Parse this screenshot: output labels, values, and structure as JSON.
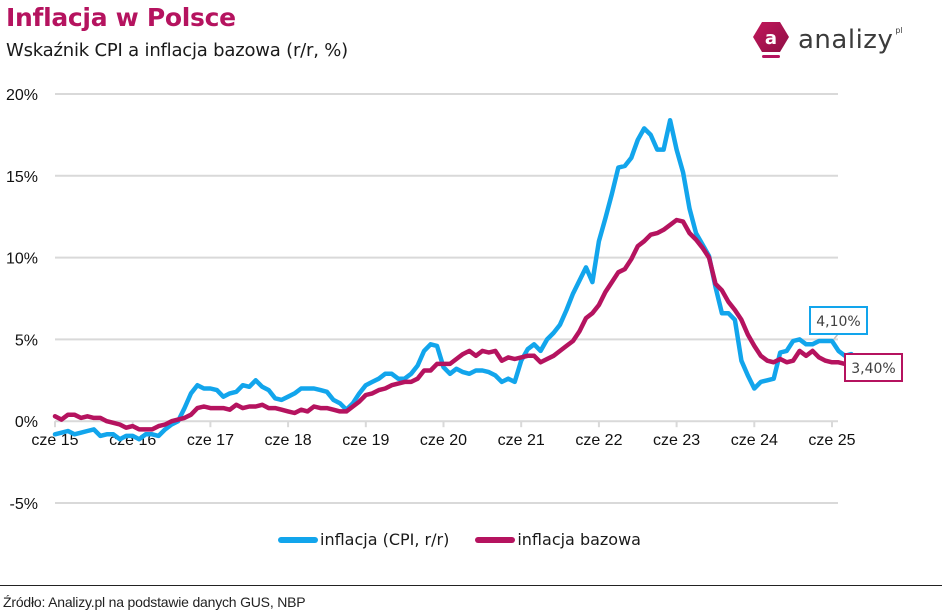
{
  "header": {
    "title": "Inflacja w Polsce",
    "subtitle": "Wskaźnik CPI a inflacja bazowa (r/r, %)"
  },
  "logo": {
    "icon_letter": "a",
    "text": "analizy",
    "suffix": "pl"
  },
  "colors": {
    "title": "#b5135f",
    "cpi": "#12a5ec",
    "core": "#b5135f",
    "grid": "#d9d9d9"
  },
  "footer": {
    "source": "Źródło: Analizy.pl na podstawie danych GUS, NBP"
  },
  "chart_data": {
    "type": "line",
    "title": "Inflacja w Polsce",
    "subtitle": "Wskaźnik CPI a inflacja bazowa (r/r, %)",
    "xlabel": "",
    "ylabel": "",
    "ylim": [
      -5,
      20
    ],
    "yticks": [
      -5,
      0,
      5,
      10,
      15,
      20
    ],
    "ytick_labels": [
      "-5%",
      "0%",
      "5%",
      "10%",
      "15%",
      "20%"
    ],
    "grid": true,
    "x_start": "2015-06",
    "x_frequency": "monthly",
    "xtick_labels": [
      "cze 15",
      "cze 16",
      "cze 17",
      "cze 18",
      "cze 19",
      "cze 20",
      "cze 21",
      "cze 22",
      "cze 23",
      "cze 24",
      "cze 25"
    ],
    "xtick_month_index": [
      0,
      12,
      24,
      36,
      48,
      60,
      72,
      84,
      96,
      108,
      120
    ],
    "legend_position": "bottom",
    "series": [
      {
        "name": "inflacja (CPI, r/r)",
        "color": "#12a5ec",
        "values": [
          -0.8,
          -0.7,
          -0.6,
          -0.8,
          -0.7,
          -0.6,
          -0.5,
          -0.9,
          -0.8,
          -0.8,
          -1.1,
          -0.9,
          -0.9,
          -1.1,
          -0.8,
          -0.8,
          -0.9,
          -0.5,
          -0.2,
          0.0,
          0.8,
          1.7,
          2.2,
          2.0,
          2.0,
          1.9,
          1.5,
          1.7,
          1.8,
          2.2,
          2.1,
          2.5,
          2.1,
          1.9,
          1.4,
          1.3,
          1.5,
          1.7,
          2.0,
          2.0,
          2.0,
          1.9,
          1.8,
          1.3,
          1.1,
          0.7,
          1.1,
          1.7,
          2.2,
          2.4,
          2.6,
          2.9,
          2.9,
          2.6,
          2.6,
          2.9,
          3.4,
          4.3,
          4.7,
          4.6,
          3.3,
          2.9,
          3.2,
          3.0,
          2.9,
          3.1,
          3.1,
          3.0,
          2.8,
          2.4,
          2.6,
          2.4,
          3.7,
          4.4,
          4.7,
          4.3,
          5.0,
          5.4,
          5.9,
          6.8,
          7.8,
          8.6,
          9.4,
          8.5,
          11.0,
          12.4,
          13.9,
          15.5,
          15.6,
          16.1,
          17.2,
          17.9,
          17.5,
          16.6,
          16.6,
          18.4,
          16.6,
          15.2,
          13.0,
          11.5,
          10.8,
          10.1,
          8.2,
          6.6,
          6.6,
          6.2,
          3.7,
          2.8,
          2.0,
          2.4,
          2.5,
          2.6,
          4.2,
          4.3,
          4.9,
          5.0,
          4.7,
          4.7,
          4.9,
          4.9,
          4.9,
          4.3,
          4.0,
          4.1
        ]
      },
      {
        "name": "inflacja bazowa",
        "color": "#b5135f",
        "values": [
          0.3,
          0.1,
          0.4,
          0.4,
          0.2,
          0.3,
          0.2,
          0.2,
          0.0,
          -0.1,
          -0.2,
          -0.4,
          -0.3,
          -0.5,
          -0.5,
          -0.5,
          -0.3,
          -0.2,
          0.0,
          0.1,
          0.2,
          0.4,
          0.8,
          0.9,
          0.8,
          0.8,
          0.8,
          0.7,
          1.0,
          0.8,
          0.9,
          0.9,
          1.0,
          0.8,
          0.8,
          0.7,
          0.6,
          0.5,
          0.7,
          0.6,
          0.9,
          0.8,
          0.8,
          0.7,
          0.6,
          0.6,
          0.9,
          1.2,
          1.6,
          1.7,
          1.9,
          2.0,
          2.2,
          2.3,
          2.4,
          2.4,
          2.6,
          3.1,
          3.1,
          3.5,
          3.5,
          3.5,
          3.8,
          4.1,
          4.3,
          4.0,
          4.3,
          4.2,
          4.3,
          3.7,
          3.9,
          3.8,
          3.9,
          4.0,
          4.0,
          3.6,
          3.8,
          4.0,
          4.3,
          4.6,
          4.9,
          5.5,
          6.3,
          6.6,
          7.1,
          7.9,
          8.5,
          9.1,
          9.3,
          9.9,
          10.7,
          11.0,
          11.4,
          11.5,
          11.7,
          12.0,
          12.3,
          12.2,
          11.5,
          11.1,
          10.6,
          10.0,
          8.4,
          8.0,
          7.3,
          6.8,
          6.2,
          5.3,
          4.6,
          4.0,
          3.7,
          3.6,
          3.8,
          3.6,
          3.7,
          4.3,
          4.0,
          4.3,
          3.9,
          3.7,
          3.6,
          3.6,
          3.5,
          3.4
        ]
      }
    ],
    "annotations": [
      {
        "series": "inflacja (CPI, r/r)",
        "label": "4,10%",
        "value": 4.1
      },
      {
        "series": "inflacja bazowa",
        "label": "3,40%",
        "value": 3.4
      }
    ]
  }
}
